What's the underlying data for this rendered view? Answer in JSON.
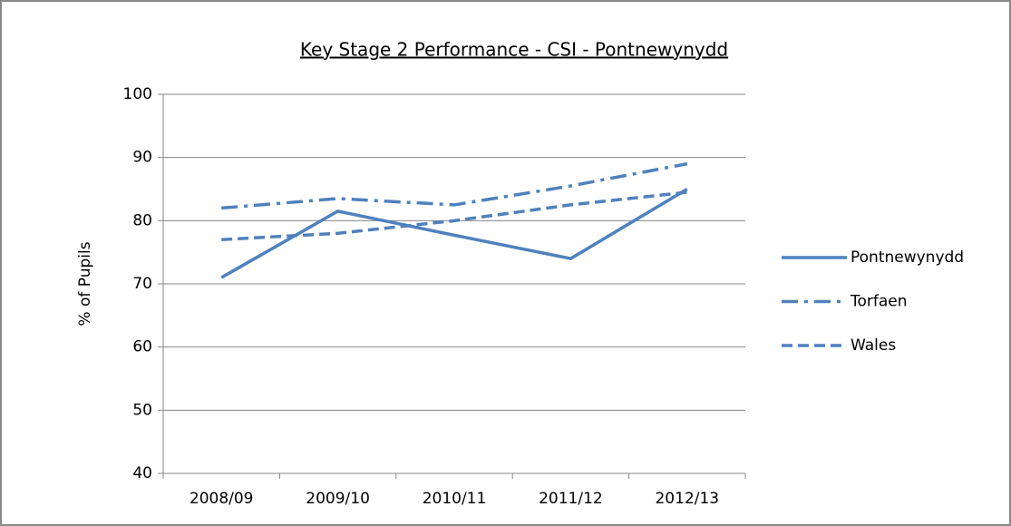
{
  "chart_data": {
    "type": "line",
    "title": "Key Stage 2 Performance - CSI - Pontnewynydd",
    "ylabel": "% of Pupils",
    "categories": [
      "2008/09",
      "2009/10",
      "2010/11",
      "2011/12",
      "2012/13"
    ],
    "series": [
      {
        "name": "Pontnewynydd",
        "color": "#4f81bd",
        "style": "solid",
        "values": [
          71,
          81.5,
          77.7,
          74,
          85
        ]
      },
      {
        "name": "Torfaen",
        "color": "#4f81bd",
        "style": "dashdot",
        "values": [
          82,
          83.5,
          82.5,
          85.5,
          89
        ]
      },
      {
        "name": "Wales",
        "color": "#4f81bd",
        "style": "dashed",
        "values": [
          77,
          78,
          80,
          82.5,
          84.5
        ]
      }
    ],
    "ylim": [
      40,
      100
    ],
    "yticks": [
      40,
      50,
      60,
      70,
      80,
      90,
      100
    ],
    "grid": true,
    "legend": "right"
  }
}
